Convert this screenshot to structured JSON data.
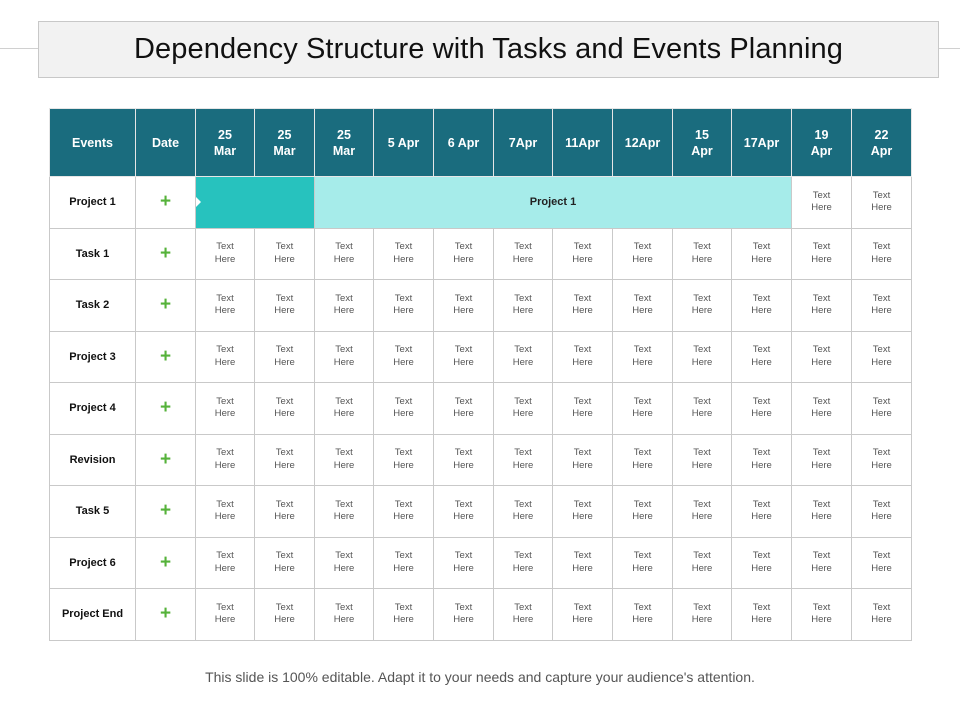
{
  "title": "Dependency Structure with Tasks and Events Planning",
  "header": {
    "events_label": "Events",
    "date_label": "Date",
    "dates": [
      [
        "25",
        "Mar"
      ],
      [
        "25",
        "Mar"
      ],
      [
        "25",
        "Mar"
      ],
      [
        "5 Apr"
      ],
      [
        "6 Apr"
      ],
      [
        "7Apr"
      ],
      [
        "11Apr"
      ],
      [
        "12Apr"
      ],
      [
        "15",
        "Apr"
      ],
      [
        "17Apr"
      ],
      [
        "19",
        "Apr"
      ],
      [
        "22",
        "Apr"
      ]
    ]
  },
  "plus_symbol": "+",
  "cell_text": [
    "Text",
    "Here"
  ],
  "rows": [
    {
      "label": "Project 1",
      "bar": {
        "label": "Project 1"
      }
    },
    {
      "label": "Task 1"
    },
    {
      "label": "Task 2"
    },
    {
      "label": "Project 3"
    },
    {
      "label": "Project 4"
    },
    {
      "label": "Revision"
    },
    {
      "label": "Task 5"
    },
    {
      "label": "Project 6"
    },
    {
      "label": "Project End"
    }
  ],
  "colors": {
    "header_bg": "#1a6c7e",
    "bar_dark": "#27c2be",
    "bar_light": "#a6ecea",
    "plus": "#55b23a"
  },
  "footer": "This slide is 100% editable. Adapt it to your needs and capture your audience's attention."
}
